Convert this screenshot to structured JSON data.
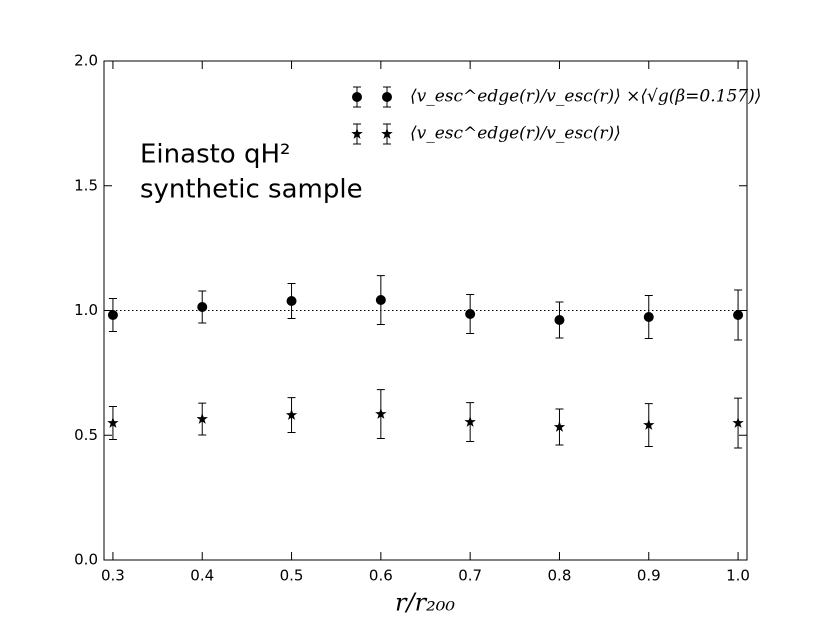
{
  "chart_data": {
    "type": "errorbar",
    "x": [
      0.3,
      0.4,
      0.5,
      0.6,
      0.7,
      0.8,
      0.9,
      1.0
    ],
    "series": [
      {
        "name": "⟨v_esc^edge(r)/v_esc(r)⟩ ×⟨√g(β=0.157)⟩",
        "marker": "circle",
        "color": "#000000",
        "values": [
          0.982,
          1.014,
          1.038,
          1.042,
          0.986,
          0.962,
          0.974,
          0.982
        ],
        "errors": [
          0.066,
          0.064,
          0.07,
          0.098,
          0.078,
          0.072,
          0.086,
          0.1
        ]
      },
      {
        "name": "⟨v_esc^edge(r)/v_esc(r)⟩",
        "marker": "star",
        "color": "#000000",
        "values": [
          0.549,
          0.565,
          0.581,
          0.585,
          0.553,
          0.533,
          0.541,
          0.549
        ],
        "errors": [
          0.066,
          0.064,
          0.07,
          0.098,
          0.078,
          0.072,
          0.086,
          0.1
        ]
      }
    ],
    "annotations": [
      "Einasto qH²",
      "synthetic sample"
    ],
    "xlabel": "r/r₂₀₀",
    "hline": 1.0,
    "xlim": [
      0.29,
      1.01
    ],
    "ylim": [
      0,
      2
    ],
    "xticks": [
      0.3,
      0.4,
      0.5,
      0.6,
      0.7,
      0.8,
      0.9,
      {
        "value": 1,
        "label": "1.0"
      }
    ],
    "yticks": [
      {
        "value": 0,
        "label": "0.0"
      },
      {
        "value": 0.5,
        "label": "0.5"
      },
      {
        "value": 1,
        "label": "1.0"
      },
      {
        "value": 1.5,
        "label": "1.5"
      },
      {
        "value": 2,
        "label": "2.0"
      }
    ],
    "legend": "upper right"
  }
}
